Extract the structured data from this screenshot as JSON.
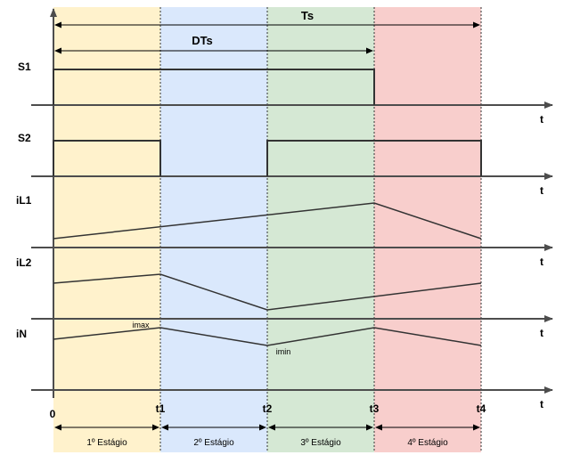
{
  "period_label": "Ts",
  "duty_label": "DTs",
  "signals": [
    "S1",
    "S2",
    "iL1",
    "iL2",
    "iN"
  ],
  "axis_label": "t",
  "time_labels": [
    "0",
    "t1",
    "t2",
    "t3",
    "t4"
  ],
  "stage_labels": [
    "1º Estágio",
    "2º Estágio",
    "3º Estágio",
    "4º Estágio"
  ],
  "imax_label": "imax",
  "imin_label": "imin",
  "colors": {
    "stage1": "#fff2cc",
    "stage2": "#dae8fc",
    "stage3": "#d5e8d4",
    "stage4": "#f8cecc",
    "axis": "#4d4d4d",
    "trace": "#333333"
  }
}
